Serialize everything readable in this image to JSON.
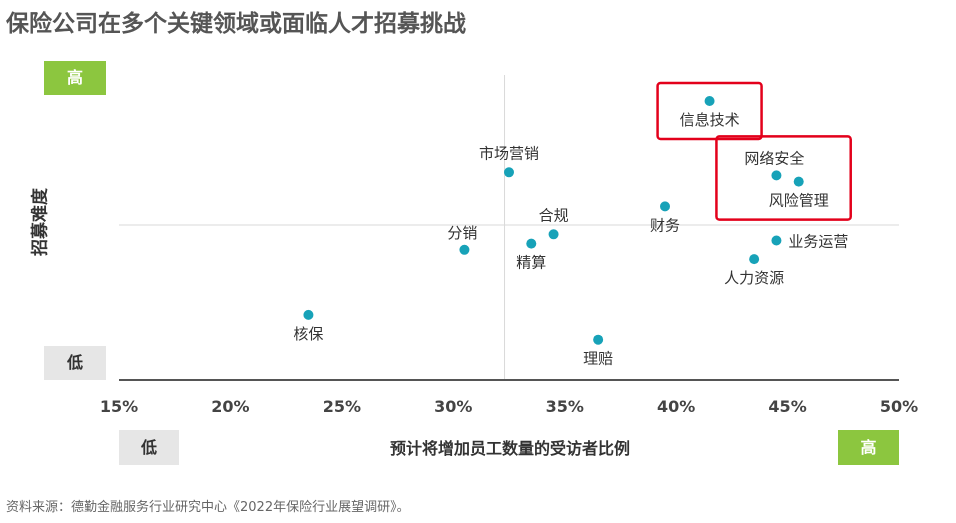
{
  "page": {
    "title": "保险公司在多个关键领域或面临人才招募挑战",
    "source": "资料来源：德勤金融服务行业研究中心《2022年保险行业展望调研》。"
  },
  "chart_data": {
    "type": "scatter",
    "xlabel": "预计将增加员工数量的受访者比例",
    "ylabel": "招募难度",
    "xlim": [
      15,
      50
    ],
    "ylim": [
      0,
      100
    ],
    "x_ticks": [
      "15%",
      "20%",
      "25%",
      "30%",
      "35%",
      "40%",
      "45%",
      "50%"
    ],
    "x_tick_values": [
      15,
      20,
      25,
      30,
      35,
      40,
      45,
      50
    ],
    "y_high_label": "高",
    "y_low_label": "低",
    "x_low_label": "低",
    "x_high_label": "高",
    "reference_lines": {
      "x": 32.3,
      "y": 50
    },
    "point_color": "#17a2b8",
    "highlight_color": "#e3001b",
    "high_color": "#8cc63f",
    "low_color": "#e6e6e6",
    "points": [
      {
        "label": "信息技术",
        "x": 41.5,
        "y": 90,
        "label_pos": "below",
        "highlight": 0
      },
      {
        "label": "网络安全",
        "x": 44.5,
        "y": 66,
        "label_pos": "above-left",
        "highlight": 1
      },
      {
        "label": "风险管理",
        "x": 45.5,
        "y": 64,
        "label_pos": "below",
        "highlight": 1
      },
      {
        "label": "市场营销",
        "x": 32.5,
        "y": 67,
        "label_pos": "above",
        "highlight": -1
      },
      {
        "label": "财务",
        "x": 39.5,
        "y": 56,
        "label_pos": "below",
        "highlight": -1
      },
      {
        "label": "合规",
        "x": 34.5,
        "y": 47,
        "label_pos": "above",
        "highlight": -1
      },
      {
        "label": "分销",
        "x": 30.5,
        "y": 42,
        "label_pos": "above-left",
        "highlight": -1
      },
      {
        "label": "精算",
        "x": 33.5,
        "y": 44,
        "label_pos": "below",
        "highlight": -1
      },
      {
        "label": "业务运营",
        "x": 44.5,
        "y": 45,
        "label_pos": "right",
        "highlight": -1
      },
      {
        "label": "人力资源",
        "x": 43.5,
        "y": 39,
        "label_pos": "below",
        "highlight": -1
      },
      {
        "label": "核保",
        "x": 23.5,
        "y": 21,
        "label_pos": "below",
        "highlight": -1
      },
      {
        "label": "理赔",
        "x": 36.5,
        "y": 13,
        "label_pos": "below",
        "highlight": -1
      }
    ]
  }
}
